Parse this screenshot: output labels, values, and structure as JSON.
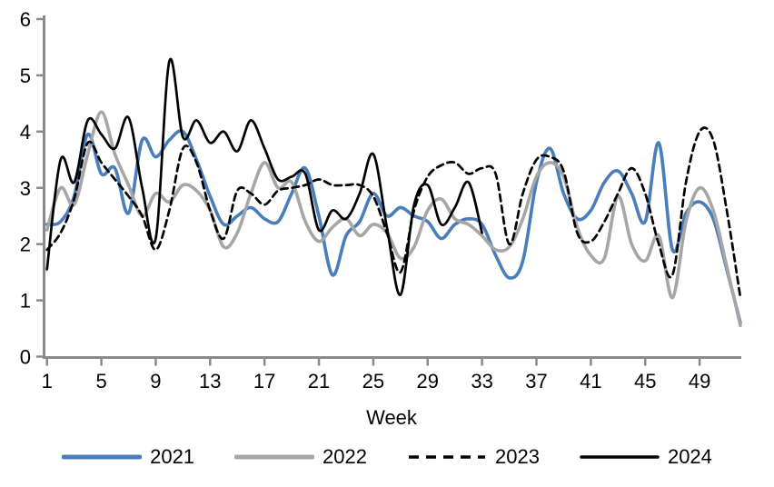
{
  "chart_data": {
    "type": "line",
    "title": "",
    "xlabel": "Week",
    "ylabel": "",
    "xlim": [
      1,
      52
    ],
    "ylim": [
      0,
      6
    ],
    "grid": false,
    "legend_position": "bottom",
    "axis_color": "#8a8a8a",
    "x_ticks": [
      1,
      5,
      9,
      13,
      17,
      21,
      25,
      29,
      33,
      37,
      41,
      45,
      49
    ],
    "y_ticks": [
      0,
      1,
      2,
      3,
      4,
      5,
      6
    ],
    "weeks": [
      1,
      2,
      3,
      4,
      5,
      6,
      7,
      8,
      9,
      10,
      11,
      12,
      13,
      14,
      15,
      16,
      17,
      18,
      19,
      20,
      21,
      22,
      23,
      24,
      25,
      26,
      27,
      28,
      29,
      30,
      31,
      32,
      33,
      34,
      35,
      36,
      37,
      38,
      39,
      40,
      41,
      42,
      43,
      44,
      45,
      46,
      47,
      48,
      49,
      50,
      51,
      52
    ],
    "series": [
      {
        "name": "2021",
        "color": "#4a7ebb",
        "style": "solid",
        "width": 3.6,
        "values": [
          2.35,
          2.4,
          2.85,
          3.95,
          3.25,
          3.35,
          2.55,
          3.85,
          3.55,
          3.85,
          4.0,
          3.5,
          2.85,
          2.35,
          2.5,
          2.65,
          2.45,
          2.4,
          2.9,
          3.35,
          2.5,
          1.45,
          2.15,
          2.4,
          2.9,
          2.5,
          2.65,
          2.5,
          2.4,
          2.1,
          2.35,
          2.45,
          2.35,
          1.8,
          1.4,
          1.7,
          3.1,
          3.7,
          2.9,
          2.45,
          2.6,
          3.1,
          3.3,
          2.9,
          2.4,
          3.8,
          1.9,
          2.55,
          2.75,
          2.45,
          1.55,
          0.6
        ]
      },
      {
        "name": "2022",
        "color": "#a6a6a6",
        "style": "solid",
        "width": 3.6,
        "values": [
          2.25,
          3.0,
          2.7,
          3.6,
          4.35,
          3.6,
          3.05,
          2.5,
          2.9,
          2.75,
          3.05,
          2.95,
          2.6,
          1.95,
          2.2,
          2.9,
          3.45,
          3.0,
          3.1,
          2.4,
          2.05,
          2.3,
          2.45,
          2.15,
          2.35,
          2.2,
          1.75,
          1.95,
          2.6,
          2.8,
          2.45,
          2.35,
          2.15,
          1.9,
          1.95,
          2.45,
          3.2,
          3.45,
          3.2,
          2.3,
          1.8,
          1.75,
          2.85,
          2.0,
          1.7,
          2.15,
          1.05,
          2.4,
          3.0,
          2.6,
          1.6,
          0.55
        ]
      },
      {
        "name": "2023",
        "color": "#000000",
        "style": "dashed",
        "width": 2.7,
        "values": [
          1.9,
          2.2,
          2.8,
          3.8,
          3.45,
          3.15,
          2.85,
          2.5,
          1.9,
          2.6,
          3.7,
          3.45,
          2.6,
          2.1,
          2.95,
          2.9,
          2.7,
          2.95,
          3.0,
          3.05,
          3.15,
          3.05,
          3.05,
          3.05,
          2.85,
          2.2,
          1.5,
          2.6,
          3.2,
          3.4,
          3.45,
          3.25,
          3.35,
          3.25,
          2.0,
          2.9,
          3.5,
          3.55,
          3.3,
          2.2,
          2.05,
          2.4,
          2.9,
          3.35,
          2.9,
          2.0,
          1.45,
          3.1,
          4.0,
          3.85,
          2.6,
          1.05
        ]
      },
      {
        "name": "2024",
        "color": "#000000",
        "style": "solid",
        "width": 2.7,
        "values": [
          1.55,
          3.5,
          3.1,
          4.2,
          3.95,
          3.7,
          4.25,
          3.0,
          2.1,
          5.25,
          3.9,
          4.2,
          3.8,
          4.0,
          3.65,
          4.2,
          3.7,
          3.15,
          3.2,
          3.25,
          2.25,
          2.6,
          2.45,
          2.9,
          3.6,
          2.3,
          1.1,
          2.7,
          3.05,
          2.35,
          2.65,
          3.1,
          2.2,
          null,
          null,
          null,
          null,
          null,
          null,
          null,
          null,
          null,
          null,
          null,
          null,
          null,
          null,
          null,
          null,
          null,
          null,
          null
        ]
      }
    ]
  }
}
